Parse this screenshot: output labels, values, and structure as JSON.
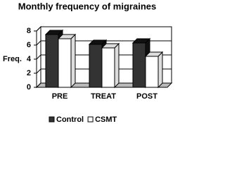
{
  "chart_data": {
    "type": "bar3d",
    "title": "Monthly frequency of migraines",
    "y_label": "Freq.",
    "categories": [
      "PRE",
      "TREAT",
      "POST"
    ],
    "series": [
      {
        "name": "Control",
        "color": "#333333",
        "values": [
          7.5,
          6.1,
          6.3
        ]
      },
      {
        "name": "CSMT",
        "color": "#ffffff",
        "values": [
          6.9,
          5.6,
          4.4
        ]
      }
    ],
    "ylim": [
      0,
      8
    ],
    "yticks": [
      0,
      2,
      4,
      6,
      8
    ],
    "grid": true,
    "legend": "bottom"
  }
}
